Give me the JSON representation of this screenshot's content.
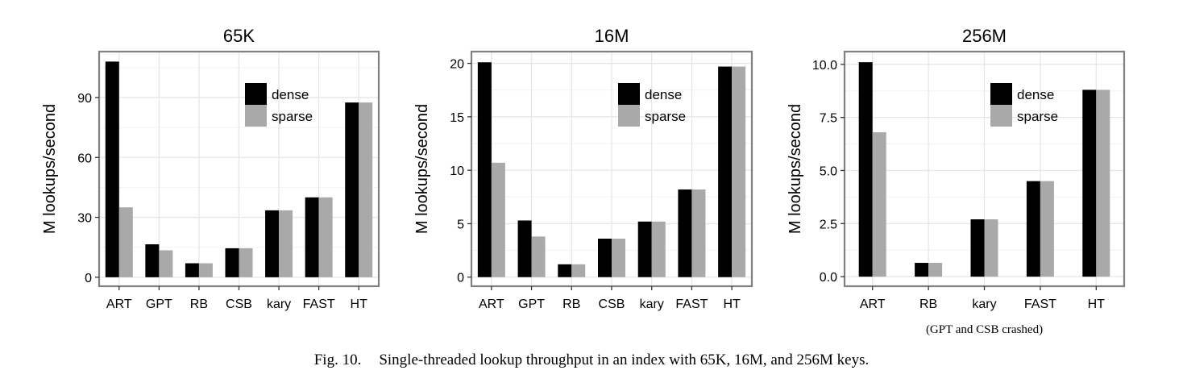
{
  "colors": {
    "dense": "#000000",
    "sparse": "#a9a9a9",
    "frame": "#808080",
    "grid": "#e6e6e6"
  },
  "chart_data": [
    {
      "type": "bar",
      "title": "65K",
      "ylabel": "M lookups/second",
      "xlabel": "",
      "categories": [
        "ART",
        "GPT",
        "RB",
        "CSB",
        "kary",
        "FAST",
        "HT"
      ],
      "series": [
        {
          "name": "dense",
          "values": [
            108,
            16.5,
            7,
            14.5,
            33.5,
            40,
            87.5
          ]
        },
        {
          "name": "sparse",
          "values": [
            35,
            13.5,
            7,
            14.5,
            33.5,
            40,
            87.5
          ]
        }
      ],
      "ylim": [
        -4.5,
        113
      ],
      "yticks": [
        0,
        30,
        60,
        90
      ],
      "ytick_labels": [
        "0",
        "30",
        "60",
        "90"
      ],
      "legend": [
        "dense",
        "sparse"
      ],
      "legend_position": "top-right",
      "note": ""
    },
    {
      "type": "bar",
      "title": "16M",
      "ylabel": "M lookups/second",
      "xlabel": "",
      "categories": [
        "ART",
        "GPT",
        "RB",
        "CSB",
        "kary",
        "FAST",
        "HT"
      ],
      "series": [
        {
          "name": "dense",
          "values": [
            20.1,
            5.3,
            1.2,
            3.6,
            5.2,
            8.2,
            19.7
          ]
        },
        {
          "name": "sparse",
          "values": [
            10.7,
            3.8,
            1.2,
            3.6,
            5.2,
            8.2,
            19.7
          ]
        }
      ],
      "ylim": [
        -0.85,
        21.1
      ],
      "yticks": [
        0,
        5,
        10,
        15,
        20
      ],
      "ytick_labels": [
        "0",
        "5",
        "10",
        "15",
        "20"
      ],
      "legend": [
        "dense",
        "sparse"
      ],
      "legend_position": "top-right",
      "note": ""
    },
    {
      "type": "bar",
      "title": "256M",
      "ylabel": "M lookups/second",
      "xlabel": "",
      "categories": [
        "ART",
        "RB",
        "kary",
        "FAST",
        "HT"
      ],
      "series": [
        {
          "name": "dense",
          "values": [
            10.1,
            0.65,
            2.7,
            4.5,
            8.8
          ]
        },
        {
          "name": "sparse",
          "values": [
            6.8,
            0.65,
            2.7,
            4.5,
            8.8
          ]
        }
      ],
      "ylim": [
        -0.45,
        10.6
      ],
      "yticks": [
        0,
        2.5,
        5,
        7.5,
        10
      ],
      "ytick_labels": [
        "0.0",
        "2.5",
        "5.0",
        "7.5",
        "10.0"
      ],
      "legend": [
        "dense",
        "sparse"
      ],
      "legend_position": "top-right",
      "note": "(GPT and CSB crashed)"
    }
  ],
  "caption": {
    "label": "Fig. 10.",
    "text": "Single-threaded lookup throughput in an index with 65K, 16M, and 256M keys."
  }
}
